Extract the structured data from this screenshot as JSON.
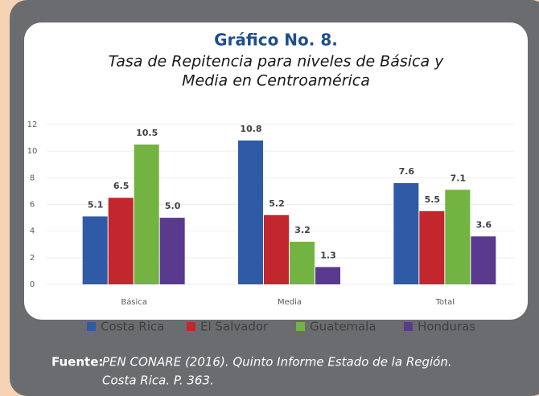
{
  "chart_data": {
    "type": "bar",
    "title": "Gráfico No. 8.",
    "subtitle": [
      "Tasa de Repitencia para niveles de Básica y",
      "Media en Centroamérica"
    ],
    "categories": [
      "Básica",
      "Media",
      "Total"
    ],
    "series": [
      {
        "name": "Costa Rica",
        "color": "#2f5aa6",
        "values": [
          5.1,
          10.8,
          7.6
        ],
        "value_labels": [
          "5.1",
          "10.8",
          "7.6"
        ]
      },
      {
        "name": "El Salvador",
        "color": "#c1272d",
        "values": [
          6.5,
          5.2,
          5.5
        ],
        "value_labels": [
          "6.5",
          "5.2",
          "5.5"
        ]
      },
      {
        "name": "Guatemala",
        "color": "#72b341",
        "values": [
          10.5,
          3.2,
          7.1
        ],
        "value_labels": [
          "10.5",
          "3.2",
          "7.1"
        ]
      },
      {
        "name": "Honduras",
        "color": "#5a3a8f",
        "values": [
          5.0,
          1.3,
          3.6
        ],
        "value_labels": [
          "5.0",
          "1.3",
          "3.6"
        ]
      }
    ],
    "ylim": [
      0,
      12
    ],
    "yticks": [
      0,
      2,
      4,
      6,
      8,
      10,
      12
    ],
    "grid": true,
    "source": {
      "label": "Fuente:",
      "lines": [
        "PEN CONARE (2016). Quinto Informe Estado de la Región.",
        "Costa Rica. P. 363."
      ]
    }
  }
}
